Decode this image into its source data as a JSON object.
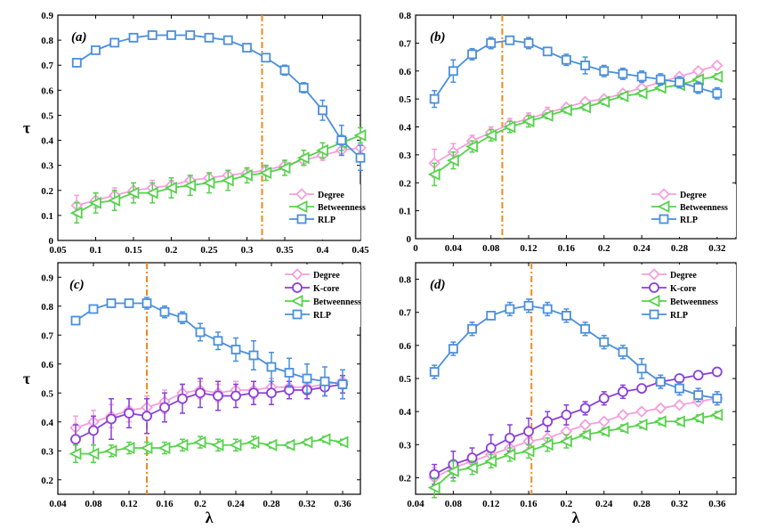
{
  "colors": {
    "Degree": "#f4a0dc",
    "K-core": "#8a3fd8",
    "Betweenness": "#55d24a",
    "RLP": "#4a8fdc",
    "refline": "#f08a1c"
  },
  "chart_data": [
    {
      "type": "line",
      "panel_label": "(a)",
      "xlabel": "",
      "ylabel": "τ",
      "xlim": [
        0.05,
        0.45
      ],
      "ylim": [
        0,
        0.9
      ],
      "xticks": [
        "0.05",
        "0.1",
        "0.15",
        "0.2",
        "0.25",
        "0.3",
        "0.35",
        "0.4",
        "0.45"
      ],
      "yticks": [
        "0",
        "0.1",
        "0.2",
        "0.3",
        "0.4",
        "0.5",
        "0.6",
        "0.7",
        "0.8",
        "0.9"
      ],
      "vline": 0.32,
      "legend": [
        "Degree",
        "Betweenness",
        "RLP"
      ],
      "x": [
        0.075,
        0.1,
        0.125,
        0.15,
        0.175,
        0.2,
        0.225,
        0.25,
        0.275,
        0.3,
        0.325,
        0.35,
        0.375,
        0.4,
        0.425,
        0.45
      ],
      "series": [
        {
          "name": "Degree",
          "values": [
            0.14,
            0.16,
            0.18,
            0.2,
            0.21,
            0.22,
            0.24,
            0.25,
            0.26,
            0.27,
            0.28,
            0.3,
            0.32,
            0.34,
            0.36,
            0.37
          ],
          "errors": [
            0.04,
            0.03,
            0.03,
            0.03,
            0.03,
            0.02,
            0.02,
            0.02,
            0.02,
            0.02,
            0.02,
            0.02,
            0.02,
            0.02,
            0.02,
            0.02
          ]
        },
        {
          "name": "Betweenness",
          "values": [
            0.11,
            0.15,
            0.16,
            0.19,
            0.19,
            0.21,
            0.22,
            0.23,
            0.24,
            0.26,
            0.27,
            0.29,
            0.33,
            0.36,
            0.39,
            0.42
          ],
          "errors": [
            0.04,
            0.04,
            0.04,
            0.04,
            0.04,
            0.04,
            0.04,
            0.04,
            0.04,
            0.03,
            0.03,
            0.03,
            0.03,
            0.03,
            0.03,
            0.03
          ]
        },
        {
          "name": "RLP",
          "values": [
            0.71,
            0.76,
            0.79,
            0.81,
            0.82,
            0.82,
            0.82,
            0.81,
            0.8,
            0.77,
            0.73,
            0.68,
            0.61,
            0.52,
            0.4,
            0.33
          ],
          "errors": [
            0.01,
            0.01,
            0.01,
            0.01,
            0.01,
            0.01,
            0.01,
            0.01,
            0.01,
            0.01,
            0.01,
            0.02,
            0.02,
            0.04,
            0.06,
            0.05
          ]
        }
      ]
    },
    {
      "type": "line",
      "panel_label": "(b)",
      "xlabel": "",
      "ylabel": "",
      "xlim": [
        0,
        0.34
      ],
      "ylim": [
        0,
        0.8
      ],
      "xticks": [
        "0",
        "0.04",
        "0.08",
        "0.12",
        "0.16",
        "0.2",
        "0.24",
        "0.28",
        "0.32"
      ],
      "yticks": [
        "0",
        "0.1",
        "0.2",
        "0.3",
        "0.4",
        "0.5",
        "0.6",
        "0.7",
        "0.8"
      ],
      "vline": 0.092,
      "legend": [
        "Degree",
        "Betweenness",
        "RLP"
      ],
      "x": [
        0.02,
        0.04,
        0.06,
        0.08,
        0.1,
        0.12,
        0.14,
        0.16,
        0.18,
        0.2,
        0.22,
        0.24,
        0.26,
        0.28,
        0.3,
        0.32
      ],
      "series": [
        {
          "name": "Degree",
          "values": [
            0.27,
            0.31,
            0.35,
            0.38,
            0.41,
            0.43,
            0.45,
            0.47,
            0.49,
            0.5,
            0.52,
            0.54,
            0.56,
            0.58,
            0.6,
            0.62
          ],
          "errors": [
            0.05,
            0.03,
            0.02,
            0.02,
            0.02,
            0.02,
            0.02,
            0.01,
            0.01,
            0.01,
            0.01,
            0.01,
            0.01,
            0.01,
            0.01,
            0.01
          ]
        },
        {
          "name": "Betweenness",
          "values": [
            0.23,
            0.28,
            0.33,
            0.37,
            0.4,
            0.42,
            0.44,
            0.46,
            0.47,
            0.49,
            0.51,
            0.52,
            0.54,
            0.55,
            0.57,
            0.58
          ],
          "errors": [
            0.04,
            0.03,
            0.02,
            0.02,
            0.02,
            0.02,
            0.01,
            0.01,
            0.01,
            0.01,
            0.01,
            0.01,
            0.01,
            0.01,
            0.01,
            0.01
          ]
        },
        {
          "name": "RLP",
          "values": [
            0.5,
            0.6,
            0.66,
            0.7,
            0.71,
            0.7,
            0.67,
            0.64,
            0.62,
            0.6,
            0.59,
            0.58,
            0.57,
            0.56,
            0.54,
            0.52
          ],
          "errors": [
            0.03,
            0.04,
            0.02,
            0.02,
            0.01,
            0.02,
            0.01,
            0.02,
            0.03,
            0.02,
            0.02,
            0.02,
            0.02,
            0.02,
            0.02,
            0.02
          ]
        }
      ]
    },
    {
      "type": "line",
      "panel_label": "(c)",
      "xlabel": "λ",
      "ylabel": "τ",
      "xlim": [
        0.04,
        0.38
      ],
      "ylim": [
        0.15,
        0.95
      ],
      "xticks": [
        "0.04",
        "0.08",
        "0.12",
        "0.16",
        "0.2",
        "0.24",
        "0.28",
        "0.32",
        "0.36"
      ],
      "yticks": [
        "0.2",
        "0.3",
        "0.4",
        "0.5",
        "0.6",
        "0.7",
        "0.8",
        "0.9"
      ],
      "vline": 0.14,
      "legend": [
        "Degree",
        "K-core",
        "Betweenness",
        "RLP"
      ],
      "x": [
        0.06,
        0.08,
        0.1,
        0.12,
        0.14,
        0.16,
        0.18,
        0.2,
        0.22,
        0.24,
        0.26,
        0.28,
        0.3,
        0.32,
        0.34,
        0.36
      ],
      "series": [
        {
          "name": "Degree",
          "values": [
            0.38,
            0.4,
            0.42,
            0.44,
            0.45,
            0.47,
            0.5,
            0.51,
            0.5,
            0.51,
            0.51,
            0.52,
            0.52,
            0.52,
            0.53,
            0.54
          ],
          "errors": [
            0.04,
            0.04,
            0.04,
            0.04,
            0.04,
            0.04,
            0.03,
            0.03,
            0.03,
            0.03,
            0.03,
            0.03,
            0.02,
            0.02,
            0.02,
            0.02
          ]
        },
        {
          "name": "K-core",
          "values": [
            0.34,
            0.37,
            0.41,
            0.43,
            0.42,
            0.45,
            0.48,
            0.5,
            0.49,
            0.49,
            0.5,
            0.5,
            0.51,
            0.51,
            0.52,
            0.53
          ],
          "errors": [
            0.05,
            0.05,
            0.07,
            0.05,
            0.06,
            0.05,
            0.05,
            0.05,
            0.05,
            0.04,
            0.04,
            0.04,
            0.03,
            0.03,
            0.03,
            0.03
          ]
        },
        {
          "name": "Betweenness",
          "values": [
            0.29,
            0.29,
            0.3,
            0.31,
            0.31,
            0.31,
            0.32,
            0.33,
            0.32,
            0.32,
            0.33,
            0.32,
            0.32,
            0.33,
            0.34,
            0.33
          ],
          "errors": [
            0.03,
            0.03,
            0.02,
            0.02,
            0.02,
            0.02,
            0.02,
            0.02,
            0.02,
            0.02,
            0.02,
            0.01,
            0.01,
            0.01,
            0.01,
            0.01
          ]
        },
        {
          "name": "RLP",
          "values": [
            0.75,
            0.79,
            0.81,
            0.81,
            0.81,
            0.78,
            0.76,
            0.71,
            0.68,
            0.65,
            0.63,
            0.59,
            0.57,
            0.55,
            0.54,
            0.53
          ],
          "errors": [
            0.01,
            0.01,
            0.01,
            0.01,
            0.02,
            0.02,
            0.02,
            0.03,
            0.03,
            0.04,
            0.05,
            0.05,
            0.05,
            0.05,
            0.05,
            0.05
          ]
        }
      ]
    },
    {
      "type": "line",
      "panel_label": "(d)",
      "xlabel": "λ",
      "ylabel": "",
      "xlim": [
        0.04,
        0.38
      ],
      "ylim": [
        0.15,
        0.85
      ],
      "xticks": [
        "0.04",
        "0.08",
        "0.12",
        "0.16",
        "0.2",
        "0.24",
        "0.28",
        "0.32",
        "0.36"
      ],
      "yticks": [
        "0.2",
        "0.3",
        "0.4",
        "0.5",
        "0.6",
        "0.7",
        "0.8"
      ],
      "vline": 0.163,
      "legend": [
        "Degree",
        "K-core",
        "Betweenness",
        "RLP"
      ],
      "x": [
        0.06,
        0.08,
        0.1,
        0.12,
        0.14,
        0.16,
        0.18,
        0.2,
        0.22,
        0.24,
        0.26,
        0.28,
        0.3,
        0.32,
        0.34,
        0.36
      ],
      "series": [
        {
          "name": "Degree",
          "values": [
            0.2,
            0.23,
            0.25,
            0.27,
            0.29,
            0.31,
            0.32,
            0.34,
            0.36,
            0.37,
            0.39,
            0.4,
            0.41,
            0.42,
            0.43,
            0.44
          ],
          "errors": [
            0.03,
            0.02,
            0.02,
            0.02,
            0.02,
            0.02,
            0.02,
            0.02,
            0.01,
            0.01,
            0.01,
            0.01,
            0.01,
            0.01,
            0.01,
            0.01
          ]
        },
        {
          "name": "K-core",
          "values": [
            0.21,
            0.24,
            0.26,
            0.29,
            0.32,
            0.34,
            0.37,
            0.39,
            0.41,
            0.44,
            0.46,
            0.47,
            0.49,
            0.5,
            0.51,
            0.52
          ],
          "errors": [
            0.03,
            0.04,
            0.03,
            0.04,
            0.04,
            0.04,
            0.03,
            0.03,
            0.02,
            0.02,
            0.02,
            0.01,
            0.01,
            0.01,
            0.01,
            0.01
          ]
        },
        {
          "name": "Betweenness",
          "values": [
            0.17,
            0.22,
            0.23,
            0.25,
            0.27,
            0.28,
            0.3,
            0.31,
            0.33,
            0.34,
            0.35,
            0.36,
            0.37,
            0.37,
            0.38,
            0.39
          ],
          "errors": [
            0.03,
            0.03,
            0.02,
            0.02,
            0.02,
            0.02,
            0.02,
            0.02,
            0.01,
            0.01,
            0.01,
            0.01,
            0.01,
            0.01,
            0.01,
            0.01
          ]
        },
        {
          "name": "RLP",
          "values": [
            0.52,
            0.59,
            0.65,
            0.69,
            0.71,
            0.72,
            0.71,
            0.69,
            0.65,
            0.61,
            0.58,
            0.53,
            0.49,
            0.47,
            0.45,
            0.44
          ],
          "errors": [
            0.02,
            0.02,
            0.02,
            0.01,
            0.02,
            0.02,
            0.02,
            0.02,
            0.02,
            0.02,
            0.02,
            0.03,
            0.02,
            0.02,
            0.02,
            0.02
          ]
        }
      ]
    }
  ]
}
